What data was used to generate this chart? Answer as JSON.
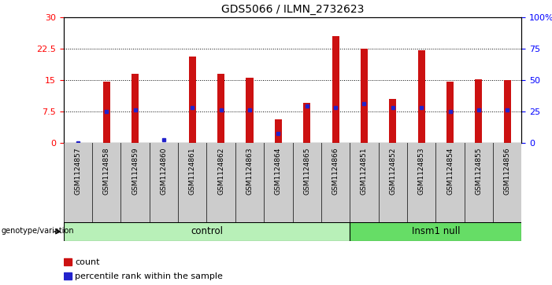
{
  "title": "GDS5066 / ILMN_2732623",
  "samples": [
    "GSM1124857",
    "GSM1124858",
    "GSM1124859",
    "GSM1124860",
    "GSM1124861",
    "GSM1124862",
    "GSM1124863",
    "GSM1124864",
    "GSM1124865",
    "GSM1124866",
    "GSM1124851",
    "GSM1124852",
    "GSM1124853",
    "GSM1124854",
    "GSM1124855",
    "GSM1124856"
  ],
  "counts": [
    0.0,
    14.5,
    16.5,
    0.0,
    20.5,
    16.5,
    15.5,
    5.5,
    9.5,
    25.5,
    22.5,
    10.5,
    22.0,
    14.5,
    15.2,
    15.0
  ],
  "percentile_ranks": [
    0.0,
    25.0,
    26.0,
    2.5,
    28.0,
    26.0,
    26.0,
    7.0,
    29.0,
    28.0,
    31.0,
    28.0,
    28.0,
    25.0,
    26.0,
    26.0
  ],
  "groups": [
    {
      "label": "control",
      "start": 0,
      "end": 9,
      "color": "#b8f0b8"
    },
    {
      "label": "Insm1 null",
      "start": 10,
      "end": 15,
      "color": "#66dd66"
    }
  ],
  "ylim_left": [
    0,
    30
  ],
  "ylim_right": [
    0,
    100
  ],
  "yticks_left": [
    0,
    7.5,
    15,
    22.5,
    30
  ],
  "ytick_labels_left": [
    "0",
    "7.5",
    "15",
    "22.5",
    "30"
  ],
  "yticks_right": [
    0,
    25,
    50,
    75,
    100
  ],
  "ytick_labels_right": [
    "0",
    "25",
    "50",
    "75",
    "100%"
  ],
  "bar_color": "#cc1111",
  "dot_color": "#2222cc",
  "bar_width": 0.25,
  "legend_items": [
    {
      "label": "count",
      "color": "#cc1111"
    },
    {
      "label": "percentile rank within the sample",
      "color": "#2222cc"
    }
  ],
  "genotype_label": "genotype/variation",
  "tick_bg_color": "#cccccc"
}
